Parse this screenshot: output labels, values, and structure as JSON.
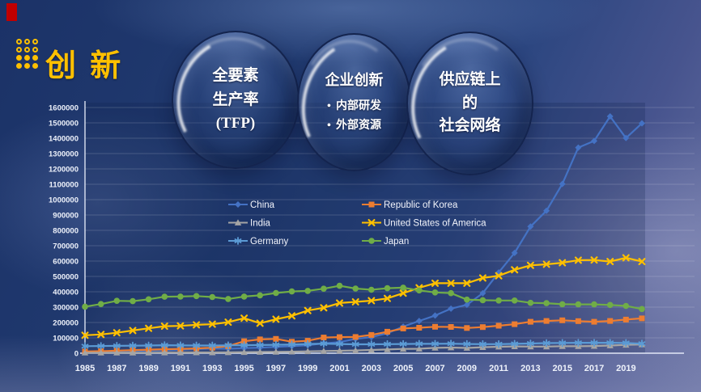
{
  "header": {
    "title": "创 新",
    "title_color": "#ffc000",
    "accent_tab_color": "#c00000"
  },
  "bubbles": [
    {
      "lines": [
        "全要素",
        "生产率",
        "(TFP)"
      ]
    },
    {
      "title": "企业创新",
      "bullet_char": "•",
      "bullets": [
        "内部研发",
        "外部资源"
      ]
    },
    {
      "lines": [
        "供应链上",
        "的",
        "社会网络"
      ]
    }
  ],
  "chart_data": {
    "type": "line",
    "title": "",
    "xlabel": "",
    "ylabel": "",
    "grid": true,
    "legend_position": "inside upper area, two columns",
    "ylim": [
      0,
      1600000
    ],
    "y_tick_step": 100000,
    "x": [
      1985,
      1986,
      1987,
      1988,
      1989,
      1990,
      1991,
      1992,
      1993,
      1994,
      1995,
      1996,
      1997,
      1998,
      1999,
      2000,
      2001,
      2002,
      2003,
      2004,
      2005,
      2006,
      2007,
      2008,
      2009,
      2010,
      2011,
      2012,
      2013,
      2014,
      2015,
      2016,
      2017,
      2018,
      2019,
      2020
    ],
    "x_tick_labels": [
      "1985",
      "1987",
      "1989",
      "1991",
      "1993",
      "1995",
      "1997",
      "1999",
      "2001",
      "2003",
      "2005",
      "2007",
      "2009",
      "2011",
      "2013",
      "2015",
      "2017",
      "2019"
    ],
    "series": [
      {
        "name": "China",
        "color": "#4472C4",
        "marker": "diamond",
        "values": [
          9000,
          11000,
          13000,
          15000,
          17000,
          19000,
          22000,
          27000,
          31000,
          29000,
          33000,
          36000,
          41000,
          46000,
          52000,
          64000,
          72000,
          93000,
          105000,
          130000,
          173000,
          210000,
          245000,
          290000,
          315000,
          391000,
          526000,
          653000,
          825000,
          928000,
          1102000,
          1339000,
          1382000,
          1542000,
          1401000,
          1497000
        ]
      },
      {
        "name": "Republic of Korea",
        "color": "#ED7D31",
        "marker": "square",
        "values": [
          11000,
          13000,
          17000,
          20000,
          23000,
          26000,
          28000,
          31000,
          36000,
          46000,
          78000,
          90000,
          93000,
          75000,
          81000,
          102000,
          105000,
          106000,
          119000,
          140000,
          161000,
          166000,
          172000,
          171000,
          164000,
          170000,
          179000,
          189000,
          205000,
          210000,
          214000,
          209000,
          205000,
          210000,
          219000,
          227000
        ]
      },
      {
        "name": "India",
        "color": "#A5A5A5",
        "marker": "triangle",
        "values": [
          3000,
          3200,
          3400,
          3600,
          3800,
          4000,
          4300,
          4600,
          5000,
          5400,
          6600,
          8000,
          9000,
          10000,
          12000,
          14000,
          16000,
          18000,
          21000,
          24000,
          28000,
          29000,
          35000,
          37000,
          34000,
          39000,
          42000,
          44000,
          43000,
          43000,
          46000,
          45000,
          47000,
          50000,
          54000,
          57000
        ]
      },
      {
        "name": "United States of America",
        "color": "#FFC000",
        "marker": "x",
        "values": [
          117000,
          122000,
          133000,
          148000,
          162000,
          176000,
          178000,
          185000,
          189000,
          202000,
          228000,
          195000,
          221000,
          243000,
          278000,
          296000,
          327000,
          334000,
          342000,
          357000,
          391000,
          426000,
          456000,
          456000,
          456000,
          490000,
          504000,
          543000,
          572000,
          579000,
          589000,
          606000,
          607000,
          597000,
          621000,
          597000
        ]
      },
      {
        "name": "Germany",
        "color": "#5B9BD5",
        "marker": "asterisk",
        "values": [
          46000,
          47000,
          48000,
          49000,
          50000,
          52000,
          51000,
          50000,
          50000,
          51000,
          52000,
          53000,
          55000,
          57000,
          60000,
          62000,
          60000,
          58000,
          58000,
          59000,
          60000,
          61000,
          61000,
          62000,
          60000,
          59000,
          59000,
          61000,
          63000,
          66000,
          67000,
          68000,
          68000,
          68000,
          67000,
          62000
        ]
      },
      {
        "name": "Japan",
        "color": "#70AD47",
        "marker": "circle",
        "values": [
          303000,
          320000,
          341000,
          339000,
          351000,
          368000,
          369000,
          372000,
          366000,
          353000,
          369000,
          377000,
          392000,
          402000,
          406000,
          420000,
          439000,
          421000,
          413000,
          423000,
          427000,
          409000,
          396000,
          391000,
          349000,
          345000,
          343000,
          343000,
          328000,
          326000,
          319000,
          318000,
          318000,
          314000,
          308000,
          288000
        ]
      }
    ]
  }
}
